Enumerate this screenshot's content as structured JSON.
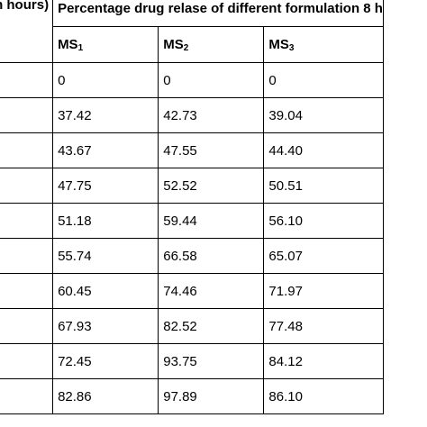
{
  "table": {
    "time_header": "Time (in hours)",
    "group_header": "Percentage drug relase of different formulation  8 h",
    "columns": [
      {
        "base": "MS",
        "sub": "1"
      },
      {
        "base": "MS",
        "sub": "2"
      },
      {
        "base": "MS",
        "sub": "3"
      }
    ],
    "rows": [
      [
        "0",
        "0",
        "0"
      ],
      [
        "37.42",
        "42.73",
        "39.04"
      ],
      [
        "43.67",
        "47.55",
        "44.40"
      ],
      [
        "47.75",
        "52.52",
        "50.51"
      ],
      [
        "51.18",
        "59.44",
        "56.10"
      ],
      [
        "55.74",
        "66.58",
        "65.07"
      ],
      [
        "60.45",
        "74.46",
        "71.97"
      ],
      [
        "67.93",
        "82.52",
        "77.48"
      ],
      [
        "72.45",
        "93.75",
        "84.12"
      ],
      [
        "82.86",
        "97.89",
        "86.10"
      ]
    ]
  }
}
